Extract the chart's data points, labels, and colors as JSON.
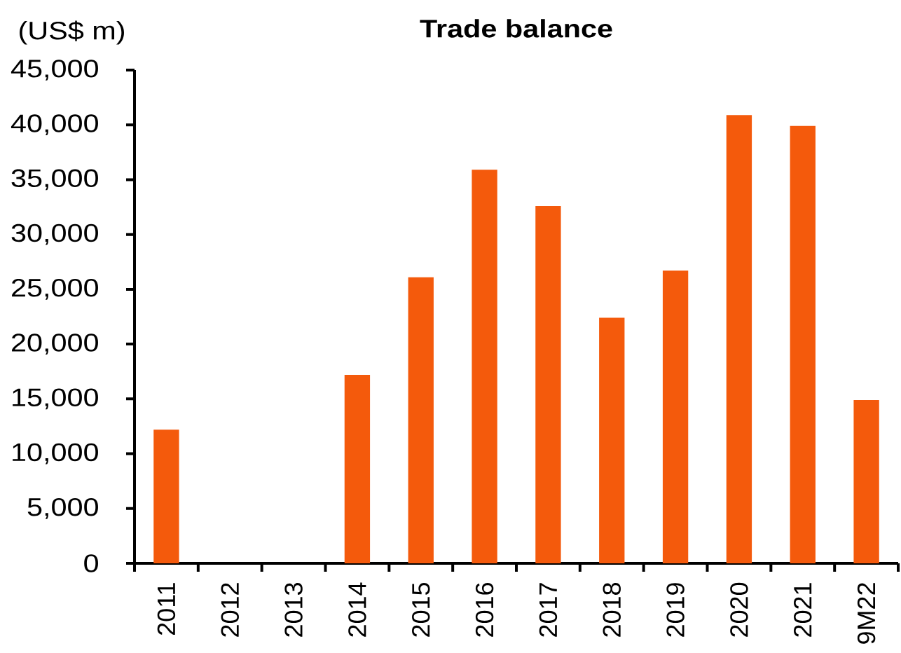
{
  "chart_data": {
    "type": "bar",
    "title": "Trade balance",
    "ylabel": "(US$ m)",
    "categories": [
      "2011",
      "2012",
      "2013",
      "2014",
      "2015",
      "2016",
      "2017",
      "2018",
      "2019",
      "2020",
      "2021",
      "9M22"
    ],
    "values": [
      12200,
      null,
      null,
      17200,
      26100,
      35900,
      32600,
      22400,
      26700,
      40900,
      39900,
      14900
    ],
    "color": "#f45a0c",
    "ylim": [
      0,
      45000
    ],
    "yticks": [
      {
        "value": 0,
        "label": "0"
      },
      {
        "value": 5000,
        "label": "5,000"
      },
      {
        "value": 10000,
        "label": "10,000"
      },
      {
        "value": 15000,
        "label": "15,000"
      },
      {
        "value": 20000,
        "label": "20,000"
      },
      {
        "value": 25000,
        "label": "25,000"
      },
      {
        "value": 30000,
        "label": "30,000"
      },
      {
        "value": 35000,
        "label": "35,000"
      },
      {
        "value": 40000,
        "label": "40,000"
      },
      {
        "value": 45000,
        "label": "45,000"
      }
    ]
  }
}
